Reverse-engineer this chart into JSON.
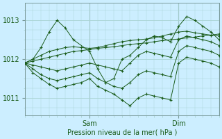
{
  "bg_color": "#cceeff",
  "grid_color": "#aad4d4",
  "line_color": "#1a5c1a",
  "text_color": "#1a5c1a",
  "xlabel_text": "Pression niveau de la mer( hPa )",
  "yticks": [
    1011,
    1012,
    1013
  ],
  "ylim": [
    1010.55,
    1013.45
  ],
  "xlim": [
    0,
    96
  ],
  "xtick_positions": [
    32,
    76
  ],
  "xtick_labels": [
    "Sam",
    "Dim"
  ],
  "vline_positions": [
    32,
    76
  ],
  "series": [
    {
      "x": [
        0,
        4,
        8,
        12,
        16,
        20,
        24,
        28,
        32,
        36,
        40,
        44,
        48,
        52,
        56,
        60,
        64,
        68,
        72,
        76,
        80,
        84,
        88,
        92,
        96
      ],
      "y": [
        1011.9,
        1011.95,
        1012.0,
        1012.05,
        1012.1,
        1012.15,
        1012.2,
        1012.22,
        1012.25,
        1012.28,
        1012.3,
        1012.32,
        1012.35,
        1012.38,
        1012.4,
        1012.42,
        1012.45,
        1012.48,
        1012.5,
        1012.52,
        1012.55,
        1012.57,
        1012.6,
        1012.62,
        1012.65
      ]
    },
    {
      "x": [
        0,
        4,
        8,
        12,
        16,
        20,
        24,
        28,
        32,
        36,
        40,
        44,
        48,
        52,
        56,
        60,
        64,
        68,
        72,
        76,
        80,
        84,
        88,
        92,
        96
      ],
      "y": [
        1011.9,
        1012.0,
        1012.1,
        1012.2,
        1012.25,
        1012.3,
        1012.32,
        1012.3,
        1012.28,
        1012.3,
        1012.35,
        1012.4,
        1012.45,
        1012.48,
        1012.5,
        1012.52,
        1012.55,
        1012.6,
        1012.65,
        1012.7,
        1012.72,
        1012.68,
        1012.65,
        1012.62,
        1012.6
      ]
    },
    {
      "x": [
        0,
        4,
        8,
        12,
        16,
        20,
        24,
        32,
        36,
        40,
        44,
        48,
        52,
        56,
        60,
        64,
        68,
        72,
        76,
        80,
        84,
        88,
        92,
        96
      ],
      "y": [
        1011.9,
        1012.0,
        1012.3,
        1012.7,
        1013.0,
        1012.8,
        1012.5,
        1012.2,
        1011.75,
        1011.4,
        1011.5,
        1012.0,
        1012.1,
        1012.3,
        1012.5,
        1012.6,
        1012.55,
        1012.45,
        1012.85,
        1013.1,
        1013.0,
        1012.85,
        1012.7,
        1012.5
      ]
    },
    {
      "x": [
        0,
        4,
        8,
        12,
        16,
        20,
        24,
        28,
        32,
        36,
        40,
        44,
        48,
        52,
        56,
        60,
        64,
        68,
        72,
        76,
        80,
        84,
        88,
        92,
        96
      ],
      "y": [
        1011.9,
        1011.85,
        1011.8,
        1011.75,
        1011.7,
        1011.75,
        1011.8,
        1011.85,
        1011.9,
        1011.85,
        1011.8,
        1011.75,
        1011.7,
        1011.9,
        1012.1,
        1012.2,
        1012.15,
        1012.1,
        1012.05,
        1012.5,
        1012.6,
        1012.55,
        1012.5,
        1012.45,
        1012.35
      ]
    },
    {
      "x": [
        0,
        4,
        8,
        12,
        16,
        20,
        24,
        28,
        32,
        36,
        40,
        44,
        48,
        52,
        56,
        60,
        64,
        68,
        72,
        76,
        80,
        84,
        88,
        92,
        96
      ],
      "y": [
        1011.9,
        1011.75,
        1011.6,
        1011.5,
        1011.45,
        1011.5,
        1011.55,
        1011.6,
        1011.65,
        1011.5,
        1011.4,
        1011.3,
        1011.25,
        1011.4,
        1011.6,
        1011.7,
        1011.65,
        1011.6,
        1011.55,
        1012.2,
        1012.35,
        1012.3,
        1012.25,
        1012.2,
        1012.1
      ]
    },
    {
      "x": [
        0,
        4,
        8,
        12,
        16,
        20,
        24,
        28,
        32,
        36,
        40,
        44,
        48,
        52,
        56,
        60,
        64,
        68,
        72,
        76,
        80,
        84,
        88,
        92,
        96
      ],
      "y": [
        1011.9,
        1011.65,
        1011.5,
        1011.35,
        1011.25,
        1011.3,
        1011.35,
        1011.4,
        1011.5,
        1011.3,
        1011.2,
        1011.1,
        1010.95,
        1010.8,
        1011.0,
        1011.1,
        1011.05,
        1011.0,
        1010.95,
        1011.9,
        1012.05,
        1012.0,
        1011.95,
        1011.9,
        1011.8
      ]
    }
  ]
}
